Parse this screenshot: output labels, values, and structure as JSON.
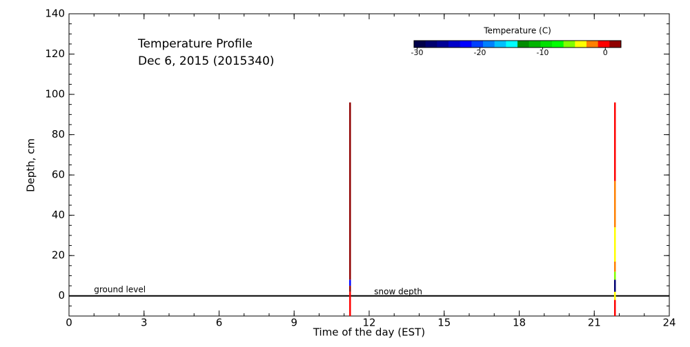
{
  "chart_data": {
    "type": "profile",
    "title_lines": [
      "Temperature Profile",
      "Dec  6, 2015 (2015340)"
    ],
    "x_label": "Time of the day (EST)",
    "y_label": "Depth, cm",
    "xlim": [
      0,
      24
    ],
    "xticks": [
      0,
      3,
      6,
      9,
      12,
      15,
      18,
      21,
      24
    ],
    "ylim": [
      -10,
      140
    ],
    "yticks": [
      0,
      20,
      40,
      60,
      80,
      100,
      120,
      140
    ],
    "annotations": [
      {
        "text": "ground level",
        "x": 1,
        "y": 3
      },
      {
        "text": "snow depth",
        "x": 12.2,
        "y": 2
      }
    ],
    "colorbar": {
      "label": "Temperature (C)",
      "lim": [
        -30.5,
        2.5
      ],
      "ticks": [
        -30,
        -20,
        -10,
        0
      ],
      "colors": [
        "#00004a",
        "#000070",
        "#000096",
        "#0000c8",
        "#0000ff",
        "#0040ff",
        "#0080ff",
        "#00c0ff",
        "#00ffff",
        "#008c00",
        "#00b400",
        "#00e000",
        "#00ff00",
        "#80ff00",
        "#ffff00",
        "#ff8000",
        "#ff0000",
        "#900000"
      ]
    },
    "profiles": [
      {
        "x": 11.23,
        "segments": [
          {
            "top": 96,
            "bottom": 8,
            "temperature": 1.5
          },
          {
            "top": 8,
            "bottom": 5,
            "temperature": -22
          },
          {
            "top": 5,
            "bottom": 2,
            "temperature": 1.5
          },
          {
            "top": 2,
            "bottom": -10,
            "temperature": 0
          }
        ]
      },
      {
        "x": 21.82,
        "segments": [
          {
            "top": 96,
            "bottom": 57,
            "temperature": 0
          },
          {
            "top": 57,
            "bottom": 34,
            "temperature": -2
          },
          {
            "top": 34,
            "bottom": 17,
            "temperature": -4
          },
          {
            "top": 17,
            "bottom": 12,
            "temperature": -2
          },
          {
            "top": 12,
            "bottom": 8,
            "temperature": -6
          },
          {
            "top": 8,
            "bottom": 2,
            "temperature": -27
          },
          {
            "top": 2,
            "bottom": -2,
            "temperature": -4
          },
          {
            "top": -2,
            "bottom": -10,
            "temperature": 0
          }
        ]
      }
    ]
  }
}
